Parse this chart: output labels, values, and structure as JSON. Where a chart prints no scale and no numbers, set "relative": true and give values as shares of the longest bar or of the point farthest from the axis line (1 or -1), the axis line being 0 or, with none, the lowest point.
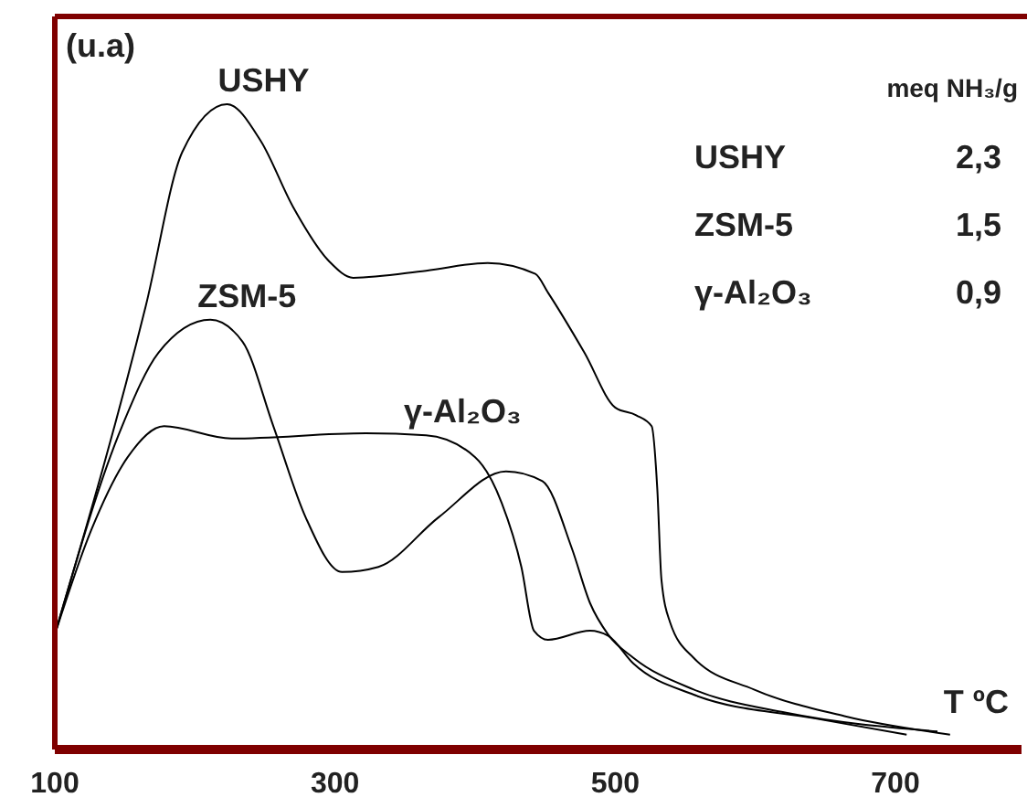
{
  "chart_data": {
    "type": "line",
    "relative": true,
    "xlabel": "T ºC",
    "ylabel": "(u.a)",
    "xlim": [
      100,
      790
    ],
    "xticks": [
      100,
      300,
      500,
      700
    ],
    "grid": false,
    "legend": false,
    "marker": "none",
    "line_style": "solid",
    "annotations": [
      "meq NH₃/g",
      "USHY",
      "2,3",
      "ZSM-5",
      "1,5",
      "γ-Al₂O₃",
      "0,9"
    ],
    "series": [
      {
        "name": "USHY",
        "color": "#000000",
        "x": [
          100,
          165,
          191,
          223,
          247,
          270,
          296,
          313,
          365,
          409,
          443,
          452,
          478,
          500,
          515,
          526,
          530,
          533,
          539,
          556,
          599,
          665,
          739
        ],
        "values": [
          0.178,
          0.688,
          0.926,
          1,
          0.943,
          0.841,
          0.756,
          0.731,
          0.742,
          0.754,
          0.737,
          0.708,
          0.615,
          0.53,
          0.518,
          0.501,
          0.405,
          0.263,
          0.198,
          0.142,
          0.093,
          0.051,
          0.023
        ]
      },
      {
        "name": "ZSM-5",
        "color": "#000000",
        "x": [
          100,
          148,
          174,
          211,
          234,
          256,
          279,
          305,
          331,
          374,
          422,
          448,
          469,
          482,
          495,
          513,
          556,
          622,
          730
        ],
        "values": [
          0.178,
          0.501,
          0.615,
          0.666,
          0.632,
          0.501,
          0.36,
          0.275,
          0.283,
          0.36,
          0.431,
          0.416,
          0.312,
          0.227,
          0.178,
          0.142,
          0.093,
          0.057,
          0.028
        ]
      },
      {
        "name": "γ-Al₂O₃",
        "color": "#000000",
        "x": [
          100,
          126,
          152,
          178,
          226,
          322,
          365,
          400,
          419,
          433,
          442,
          452,
          482,
          495,
          513,
          556,
          643,
          708
        ],
        "values": [
          0.178,
          0.34,
          0.453,
          0.501,
          0.482,
          0.49,
          0.487,
          0.453,
          0.382,
          0.283,
          0.184,
          0.17,
          0.184,
          0.176,
          0.133,
          0.085,
          0.048,
          0.023
        ]
      }
    ]
  }
}
